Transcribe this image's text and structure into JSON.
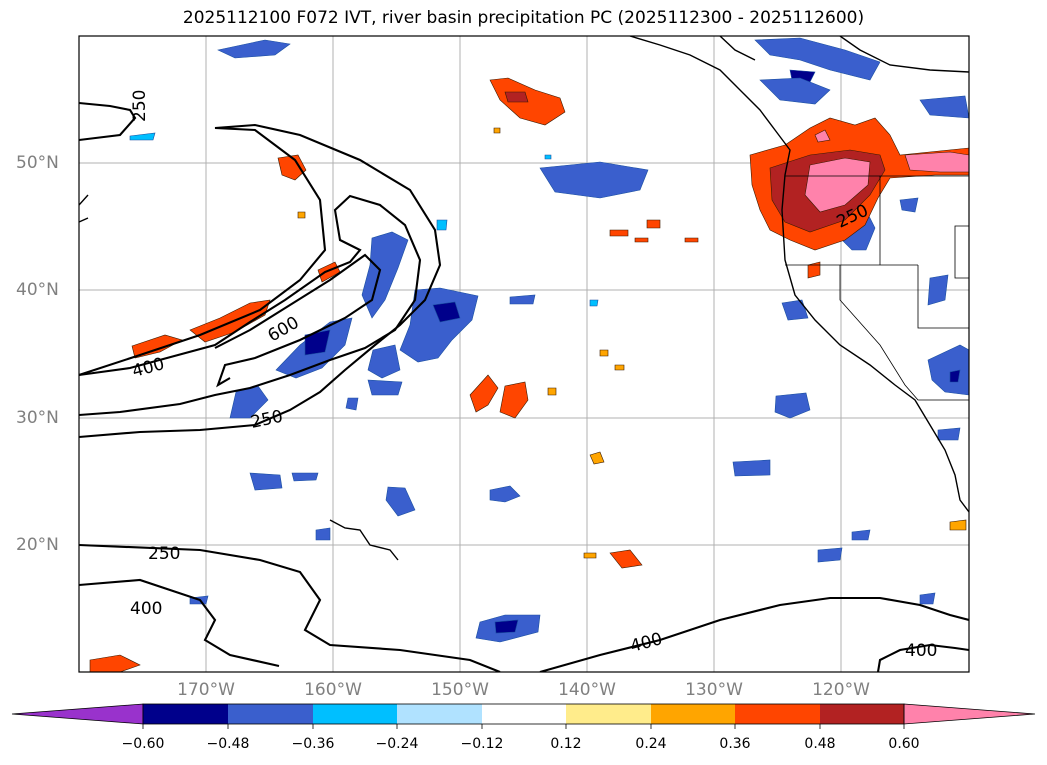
{
  "title": "2025112100 F072 IVT, river basin precipitation PC (2025112300 - 2025112600)",
  "axes": {
    "longitude_labels": [
      "170°W",
      "160°W",
      "150°W",
      "140°W",
      "130°W",
      "120°W"
    ],
    "latitude_labels": [
      "50°N",
      "40°N",
      "30°N",
      "20°N"
    ]
  },
  "colorbar": {
    "tick_labels": [
      "−0.60",
      "−0.48",
      "−0.36",
      "−0.24",
      "−0.12",
      "0.12",
      "0.24",
      "0.36",
      "0.48",
      "0.60"
    ],
    "colors": [
      "#9932cc",
      "#00008b",
      "#3a5fcd",
      "#00bfff",
      "#b0e2ff",
      "#ffffff",
      "#ffec8b",
      "#ffa500",
      "#ff4500",
      "#b22222",
      "#ff82ab"
    ],
    "extend": "both"
  },
  "ivt_contour_labels": [
    "250",
    "400",
    "600",
    "250",
    "250",
    "400",
    "250",
    "400",
    "400"
  ],
  "colors": {
    "grid": "#b0b0b0",
    "tick_label": "#808080",
    "coast": "#000000"
  }
}
